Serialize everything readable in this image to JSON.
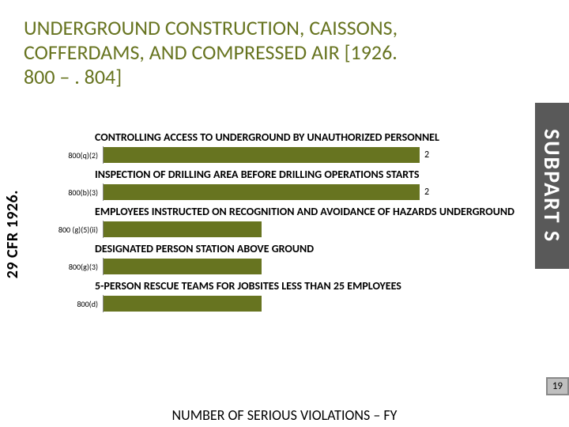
{
  "title": "UNDERGROUND CONSTRUCTION, CAISSONS, COFFERDAMS, AND COMPRESSED AIR [1926. 800 – . 804]",
  "left_label": "29 CFR 1926.",
  "right_label": "SUBPART S",
  "footer": "NUMBER OF SERIOUS VIOLATIONS – FY",
  "page_number": "19",
  "chart": {
    "type": "bar-horizontal",
    "xmax": 2.2,
    "bar_color": "#677420",
    "axis_color": "#888888",
    "sections": [
      {
        "title": "CONTROLLING ACCESS TO UNDERGROUND BY UNAUTHORIZED PERSONNEL",
        "row": {
          "ylabel": "800(q)(2)",
          "value": 2,
          "value_pos": "outside"
        }
      },
      {
        "title": "INSPECTION OF DRILLING AREA BEFORE DRILLING OPERATIONS STARTS",
        "row": {
          "ylabel": "800(b)(3)",
          "value": 2,
          "value_pos": "outside"
        }
      },
      {
        "title": "EMPLOYEES INSTRUCTED ON RECOGNITION AND AVOIDANCE OF HAZARDS UNDERGROUND",
        "row": {
          "ylabel": "800 (g)(5)(ii)",
          "value": 1,
          "value_pos": "inside"
        }
      },
      {
        "title": "DESIGNATED PERSON STATION ABOVE GROUND",
        "row": {
          "ylabel": "800(g)(3)",
          "value": 1,
          "value_pos": "inside"
        }
      },
      {
        "title": "5-PERSON RESCUE TEAMS FOR JOBSITES LESS THAN 25 EMPLOYEES",
        "row": {
          "ylabel": "800(d)",
          "value": 1,
          "value_pos": "inside"
        }
      }
    ]
  },
  "colors": {
    "title_text": "#677420",
    "right_band_bg": "#595959",
    "right_band_text": "#ffffff",
    "page_badge_bg": "#bfbfbf",
    "page_badge_border": "#888888",
    "background": "#ffffff",
    "text": "#000000"
  },
  "fonts": {
    "title_size": 26,
    "section_title_size": 14,
    "ylabel_size": 10,
    "value_size": 12,
    "vlabel_left_size": 20,
    "vlabel_right_size": 28,
    "footer_size": 18
  }
}
